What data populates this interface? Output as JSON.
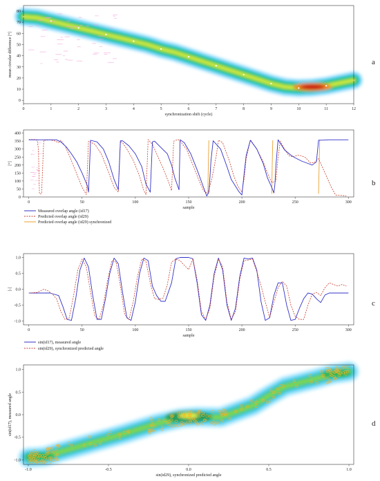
{
  "panels": {
    "a": {
      "label": "a"
    },
    "b": {
      "label": "b"
    },
    "c": {
      "label": "c"
    },
    "d": {
      "label": "d"
    }
  },
  "chart_data": [
    {
      "id": "a",
      "type": "heatmap",
      "xlabel": "synchronization shift (cycle)",
      "ylabel": "mean circular difference [°]",
      "xticks": [
        "0",
        "1",
        "2",
        "3",
        "4",
        "5",
        "6",
        "7",
        "8",
        "9",
        "10",
        "11",
        "12"
      ],
      "yticks": [
        "0",
        "10",
        "20",
        "30",
        "40",
        "50",
        "60",
        "70",
        "80"
      ],
      "xlim": [
        0,
        12
      ],
      "ylim": [
        -3,
        85
      ],
      "colormap": [
        "#ffffff",
        "#a8e4ff",
        "#28c8e8",
        "#22c45a",
        "#d8ec3a",
        "#f08a1a",
        "#c81818"
      ],
      "band": {
        "x": [
          0,
          0.5,
          1,
          1.5,
          2,
          2.5,
          3,
          3.5,
          4,
          4.5,
          5,
          5.5,
          6,
          6.5,
          7,
          7.5,
          8,
          8.5,
          9,
          9.5,
          10,
          10.5,
          11,
          11.5,
          12
        ],
        "y": [
          75,
          74,
          71,
          68,
          65,
          62,
          59,
          56,
          53,
          50,
          46,
          43,
          39,
          35,
          31,
          27,
          23,
          19,
          15,
          12,
          11,
          11.5,
          13,
          15.5,
          18
        ]
      },
      "peak": {
        "x": 10.5,
        "y": 12
      }
    },
    {
      "id": "b",
      "type": "line",
      "ylabel": "[°]",
      "xlabel": "sample",
      "xticks": [
        "0",
        "50",
        "100",
        "150",
        "200",
        "250",
        "300"
      ],
      "yticks": [
        "0",
        "50",
        "100",
        "150",
        "200",
        "250",
        "300",
        "350",
        "400"
      ],
      "xlim": [
        -5,
        305
      ],
      "ylim": [
        0,
        420
      ],
      "series": [
        {
          "name": "Measured overlap angle (id17)",
          "color": "#3030c8",
          "dash": "",
          "x": [
            0,
            9,
            12,
            14,
            18,
            22,
            24,
            26,
            30,
            35,
            40,
            45,
            50,
            55,
            56,
            58,
            64,
            70,
            75,
            80,
            84,
            86,
            88,
            94,
            100,
            106,
            110,
            114,
            116,
            118,
            124,
            130,
            134,
            137,
            141,
            142,
            146,
            152,
            158,
            164,
            167,
            169,
            170,
            171,
            173,
            180,
            186,
            190,
            197,
            200,
            202,
            204,
            208,
            214,
            220,
            224,
            228,
            230,
            231,
            232,
            234,
            240,
            246,
            250,
            256,
            262,
            266,
            270,
            272,
            276,
            282,
            288,
            294,
            300
          ],
          "y": [
            358,
            358,
            358,
            358,
            358,
            358,
            358,
            358,
            345,
            315,
            270,
            220,
            150,
            70,
            30,
            355,
            345,
            300,
            220,
            110,
            45,
            352,
            352,
            320,
            270,
            190,
            80,
            30,
            345,
            350,
            310,
            270,
            200,
            120,
            45,
            358,
            340,
            270,
            170,
            60,
            6,
            30,
            120,
            230,
            352,
            300,
            190,
            110,
            35,
            12,
            140,
            260,
            355,
            300,
            210,
            120,
            60,
            25,
            80,
            200,
            358,
            295,
            262,
            245,
            225,
            210,
            200,
            220,
            356,
            356,
            358,
            358,
            358,
            358
          ]
        },
        {
          "name": "Predicted overlap angle (id29)",
          "color": "#c83c28",
          "dash": "2,1.5",
          "x": [
            0,
            4,
            6,
            8,
            9,
            10,
            12,
            14,
            20,
            25,
            28,
            30,
            34,
            38,
            44,
            50,
            54,
            56,
            62,
            68,
            74,
            80,
            84,
            86,
            88,
            92,
            98,
            104,
            108,
            110,
            112,
            116,
            120,
            126,
            132,
            134,
            136,
            140,
            142,
            148,
            154,
            160,
            164,
            168,
            172,
            176,
            178,
            182,
            188,
            192,
            196,
            200,
            202,
            204,
            208,
            214,
            220,
            224,
            228,
            232,
            234,
            236,
            240,
            244,
            248,
            252,
            256,
            260,
            264,
            268,
            270,
            272,
            276,
            280,
            284,
            288,
            292,
            296,
            298
          ],
          "y": [
            360,
            360,
            360,
            355,
            300,
            20,
            20,
            355,
            358,
            350,
            340,
            355,
            320,
            260,
            160,
            60,
            15,
            350,
            330,
            270,
            170,
            60,
            30,
            350,
            340,
            300,
            230,
            130,
            40,
            15,
            360,
            330,
            270,
            180,
            80,
            40,
            350,
            360,
            350,
            300,
            200,
            100,
            40,
            20,
            120,
            260,
            356,
            340,
            230,
            140,
            70,
            30,
            110,
            240,
            358,
            300,
            220,
            150,
            90,
            100,
            250,
            350,
            300,
            260,
            250,
            262,
            258,
            245,
            215,
            215,
            230,
            240,
            180,
            120,
            60,
            12,
            10,
            8,
            6
          ]
        },
        {
          "name": "Predicted overlap angle (id29) synchronized",
          "color": "#e8a030",
          "dash": "",
          "segments": [
            {
              "x": [
                168,
                168.5,
                169
              ],
              "y": [
                20,
                200,
                355
              ]
            },
            {
              "x": [
                228,
                228.5,
                229
              ],
              "y": [
                20,
                200,
                355
              ]
            },
            {
              "x": [
                272,
                272.5,
                273
              ],
              "y": [
                20,
                200,
                355
              ]
            }
          ]
        }
      ]
    },
    {
      "id": "c",
      "type": "line",
      "ylabel": "[-]",
      "xlabel": "sample",
      "xticks": [
        "0",
        "50",
        "100",
        "150",
        "200",
        "250",
        "300"
      ],
      "yticks": [
        "-1.0",
        "-0.5",
        "0.0",
        "0.5",
        "1.0"
      ],
      "xlim": [
        -5,
        305
      ],
      "ylim": [
        -1.12,
        1.12
      ],
      "series": [
        {
          "name": "sin(id17), measured angle",
          "color": "#3030c8",
          "dash": "",
          "x": [
            0,
            10,
            20,
            28,
            32,
            36,
            40,
            44,
            48,
            52,
            56,
            60,
            64,
            68,
            72,
            76,
            80,
            84,
            88,
            92,
            96,
            100,
            104,
            108,
            112,
            116,
            120,
            124,
            128,
            134,
            138,
            142,
            146,
            150,
            154,
            158,
            162,
            166,
            170,
            174,
            178,
            182,
            186,
            190,
            194,
            198,
            202,
            206,
            210,
            214,
            218,
            222,
            226,
            230,
            234,
            238,
            242,
            246,
            250,
            254,
            258,
            262,
            266,
            270,
            274,
            278,
            282,
            290,
            300
          ],
          "y": [
            -0.12,
            -0.12,
            -0.12,
            -0.2,
            -0.55,
            -0.95,
            -0.98,
            -0.3,
            0.6,
            0.98,
            0.7,
            -0.2,
            -0.95,
            -0.95,
            -0.3,
            0.5,
            0.98,
            0.8,
            -0.1,
            -0.9,
            -0.98,
            -0.4,
            0.5,
            0.98,
            0.9,
            0.1,
            -0.2,
            -0.38,
            -0.38,
            0.2,
            0.96,
            1,
            1,
            1,
            0.96,
            0.2,
            -0.8,
            -0.98,
            -0.5,
            0.5,
            0.98,
            0.6,
            -0.5,
            -0.98,
            -0.6,
            0.4,
            0.98,
            0.95,
            0.98,
            0.6,
            -0.4,
            -0.98,
            -0.9,
            -0.2,
            0.2,
            0.2,
            -0.5,
            -0.98,
            -0.95,
            -0.6,
            -0.3,
            -0.12,
            -0.15,
            -0.3,
            -0.42,
            -0.18,
            -0.12,
            -0.12,
            -0.12
          ]
        },
        {
          "name": "sin(id29), synchronized predicted angle",
          "color": "#c83c28",
          "dash": "2,1.5",
          "x": [
            0,
            8,
            14,
            18,
            22,
            26,
            30,
            34,
            38,
            42,
            46,
            50,
            54,
            58,
            62,
            66,
            70,
            74,
            78,
            82,
            86,
            90,
            94,
            98,
            102,
            106,
            110,
            114,
            118,
            122,
            126,
            130,
            134,
            138,
            142,
            146,
            150,
            154,
            158,
            162,
            166,
            170,
            174,
            178,
            182,
            186,
            190,
            194,
            198,
            202,
            206,
            210,
            214,
            218,
            222,
            226,
            230,
            234,
            238,
            242,
            246,
            250,
            254,
            258,
            262,
            266,
            270,
            274,
            278,
            282,
            286,
            290,
            294,
            298
          ],
          "y": [
            -0.12,
            -0.1,
            0,
            -0.05,
            -0.15,
            -0.3,
            -0.7,
            -0.95,
            -0.9,
            -0.2,
            0.6,
            0.95,
            0.7,
            -0.1,
            -0.85,
            -0.95,
            -0.5,
            0.3,
            0.9,
            0.85,
            0.1,
            -0.8,
            -0.95,
            -0.4,
            0.4,
            0.95,
            0.88,
            0.2,
            -0.3,
            -0.32,
            -0.28,
            0.15,
            0.85,
            0.95,
            0.9,
            0.75,
            0.62,
            0.95,
            0.3,
            -0.7,
            -0.95,
            -0.6,
            0.4,
            0.95,
            0.7,
            -0.4,
            -0.95,
            -0.7,
            0.3,
            0.9,
            0.92,
            0.95,
            0.55,
            0.1,
            -0.4,
            -0.9,
            -0.4,
            0.05,
            0.25,
            0.1,
            -0.5,
            -0.85,
            -0.95,
            -0.95,
            -0.5,
            -0.15,
            -0.1,
            -0.2,
            0.05,
            0.2,
            0.15,
            0.1,
            0.15,
            0.1
          ]
        }
      ]
    },
    {
      "id": "d",
      "type": "scatter",
      "xlabel": "sin(id29), synchronized predicted angle",
      "ylabel": "sin(id17), measured angle",
      "xticks": [
        "-1.0",
        "-0.5",
        "0.0",
        "0.5",
        "1.0"
      ],
      "yticks": [
        "-1.0",
        "-0.5",
        "0.0",
        "0.5",
        "1.0"
      ],
      "xlim": [
        -1.03,
        1.03
      ],
      "ylim": [
        -1.1,
        1.1
      ],
      "density_band": {
        "x": [
          -1.0,
          -0.9,
          -0.8,
          -0.6,
          -0.4,
          -0.2,
          -0.05,
          0.05,
          0.2,
          0.4,
          0.5,
          0.6,
          0.8,
          0.9,
          1.0
        ],
        "y": [
          -0.95,
          -0.93,
          -0.82,
          -0.62,
          -0.42,
          -0.2,
          -0.08,
          -0.05,
          -0.06,
          0.2,
          0.42,
          0.62,
          0.8,
          0.9,
          0.95
        ]
      },
      "point_color": "#ffb020"
    }
  ],
  "colors": {
    "measured": "#3030c8",
    "predicted": "#c83c28",
    "synchronized": "#e8a030",
    "axis": "#333333"
  }
}
